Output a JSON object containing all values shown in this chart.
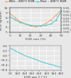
{
  "top": {
    "x": [
      0,
      5,
      10,
      15,
      20,
      25,
      30,
      35,
      40,
      45,
      50
    ],
    "nox": [
      8.8,
      8.0,
      7.2,
      6.7,
      6.3,
      6.1,
      6.3,
      6.8,
      7.5,
      8.5,
      9.5
    ],
    "part": [
      0.22,
      0.18,
      0.14,
      0.12,
      0.1,
      0.09,
      0.09,
      0.1,
      0.12,
      0.17,
      0.3
    ],
    "nox_color": "#f4a460",
    "part_color": "#40c4d0",
    "nox_label": "NOx - 200°C EGR",
    "part_label": "Part. - 200°C EGR",
    "xlabel": "EGR rate (%)",
    "ylabel_left": "NOx (g/kWh)",
    "ylabel_right": "Part. (g/kWh)",
    "xlim": [
      0,
      50
    ],
    "ylim_left": [
      5,
      10
    ],
    "ylim_right": [
      0.0,
      0.35
    ],
    "xticks": [
      0,
      10,
      20,
      30,
      40,
      50
    ],
    "yticks_left": [
      5,
      6,
      7,
      8,
      9,
      10
    ],
    "yticks_right": [
      0.0,
      0.05,
      0.1,
      0.15,
      0.2,
      0.25,
      0.3,
      0.35
    ]
  },
  "bottom": {
    "x": [
      50,
      100,
      150,
      200,
      250,
      300,
      350,
      400
    ],
    "nox": [
      0.3,
      0.15,
      0.0,
      -0.1,
      -0.22,
      -0.32,
      -0.4,
      -0.48
    ],
    "color": "#40c4d0",
    "xlabel": "EGR gas T (°C)",
    "ylabel": "NOx variation (%)",
    "xlim": [
      50,
      400
    ],
    "ylim": [
      -0.6,
      0.4
    ],
    "xticks": [
      50,
      100,
      150,
      200,
      250,
      300,
      350,
      400
    ],
    "yticks": [
      -0.6,
      -0.4,
      -0.2,
      0.0,
      0.2,
      0.4
    ]
  },
  "bg_color": "#e8e8e8",
  "plot_bg": "#e8e8e8",
  "grid_color": "#ffffff",
  "text_color": "#444444",
  "legend_fontsize": 3.0,
  "tick_fontsize": 3.2,
  "label_fontsize": 3.2,
  "axis_lw": 0.3
}
